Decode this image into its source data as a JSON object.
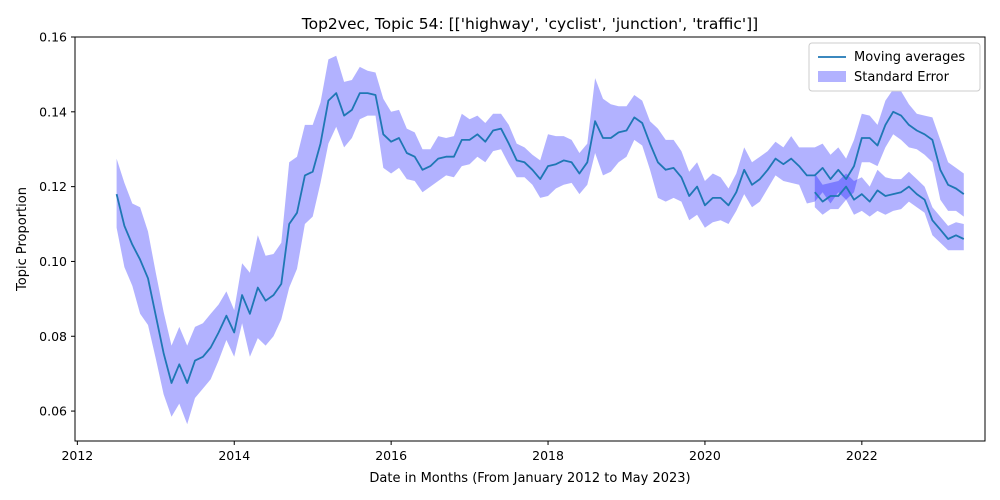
{
  "chart_data": {
    "type": "line",
    "title": "Top2vec, Topic 54: [['highway', 'cyclist', 'junction', 'traffic']]",
    "xlabel": "Date in Months (From January 2012 to May 2023)",
    "ylabel": "Topic Proportion",
    "xlim": [
      2011.97,
      2023.57
    ],
    "ylim": [
      0.052,
      0.16
    ],
    "x_ticks": [
      2012,
      2014,
      2016,
      2018,
      2020,
      2022
    ],
    "y_ticks": [
      0.06,
      0.08,
      0.1,
      0.12,
      0.14,
      0.16
    ],
    "y_tick_labels": [
      "0.06",
      "0.08",
      "0.10",
      "0.12",
      "0.14",
      "0.16"
    ],
    "grid": false,
    "legend_position": "top-right",
    "legend": [
      {
        "label": "Moving averages",
        "kind": "line",
        "color": "#1f77b4"
      },
      {
        "label": "Standard Error",
        "kind": "band",
        "color": "#0000ff"
      }
    ],
    "colors": {
      "line": "#1f77b4",
      "band": "#0000ff"
    },
    "series": [
      {
        "x": [
          2012.5,
          2012.6,
          2012.7,
          2012.8,
          2012.9,
          2013.0,
          2013.1,
          2013.2,
          2013.3,
          2013.4,
          2013.5,
          2013.6,
          2013.7,
          2013.8,
          2013.9,
          2014.0,
          2014.1,
          2014.2,
          2014.3,
          2014.4,
          2014.5,
          2014.6,
          2014.7,
          2014.8,
          2014.9,
          2015.0,
          2015.1,
          2015.2,
          2015.3,
          2015.4,
          2015.5,
          2015.6,
          2015.7,
          2015.8,
          2015.9,
          2016.0,
          2016.1,
          2016.2,
          2016.3,
          2016.4,
          2016.5,
          2016.6,
          2016.7,
          2016.8,
          2016.9,
          2017.0,
          2017.1,
          2017.2,
          2017.3,
          2017.4,
          2017.5,
          2017.6,
          2017.7,
          2017.8,
          2017.9,
          2018.0,
          2018.1,
          2018.2,
          2018.3,
          2018.4,
          2018.5,
          2018.6,
          2018.7,
          2018.8,
          2018.9,
          2019.0,
          2019.1,
          2019.2,
          2019.3,
          2019.4,
          2019.5,
          2019.6,
          2019.7,
          2019.8,
          2019.9,
          2020.0,
          2020.1,
          2020.2,
          2020.3,
          2020.4,
          2020.5,
          2020.6,
          2020.7,
          2020.8,
          2020.9,
          2021.0,
          2021.1,
          2021.2,
          2021.3,
          2021.4,
          2021.5,
          2021.6,
          2021.7,
          2021.8,
          2021.9,
          2022.0,
          2022.1,
          2022.2,
          2022.3,
          2022.4,
          2022.5,
          2022.6,
          2022.7,
          2022.8,
          2022.9,
          2023.0,
          2023.1,
          2023.2,
          2023.3
        ],
        "y": [
          0.118,
          0.1095,
          0.1045,
          0.1005,
          0.0955,
          0.0855,
          0.0755,
          0.0675,
          0.0725,
          0.0675,
          0.0735,
          0.0745,
          0.077,
          0.081,
          0.0855,
          0.081,
          0.091,
          0.086,
          0.093,
          0.0895,
          0.091,
          0.094,
          0.11,
          0.113,
          0.123,
          0.124,
          0.1315,
          0.143,
          0.145,
          0.139,
          0.1405,
          0.145,
          0.145,
          0.1445,
          0.134,
          0.132,
          0.133,
          0.129,
          0.128,
          0.1245,
          0.1255,
          0.1275,
          0.128,
          0.128,
          0.1325,
          0.1325,
          0.134,
          0.132,
          0.135,
          0.1355,
          0.1315,
          0.127,
          0.1265,
          0.1245,
          0.122,
          0.1255,
          0.126,
          0.127,
          0.1265,
          0.1235,
          0.1265,
          0.1375,
          0.133,
          0.133,
          0.1345,
          0.135,
          0.1385,
          0.137,
          0.1315,
          0.1265,
          0.1245,
          0.125,
          0.1225,
          0.1175,
          0.12,
          0.115,
          0.117,
          0.117,
          0.115,
          0.1185,
          0.1245,
          0.1205,
          0.122,
          0.1245,
          0.1275,
          0.126,
          0.1275,
          0.1255,
          0.123,
          0.123,
          0.125,
          0.122,
          0.1245,
          0.122,
          0.1255,
          0.133,
          0.133,
          0.131,
          0.1365,
          0.14,
          0.139,
          0.1365,
          0.135,
          0.134,
          0.1325,
          0.1245,
          0.1205,
          0.1195,
          0.118
        ],
        "lower": [
          0.109,
          0.0985,
          0.0935,
          0.086,
          0.083,
          0.074,
          0.0645,
          0.0585,
          0.062,
          0.0565,
          0.0635,
          0.066,
          0.0685,
          0.0735,
          0.079,
          0.0745,
          0.0835,
          0.0745,
          0.0795,
          0.0775,
          0.08,
          0.0845,
          0.093,
          0.098,
          0.11,
          0.112,
          0.121,
          0.1315,
          0.136,
          0.1305,
          0.133,
          0.138,
          0.139,
          0.139,
          0.125,
          0.1235,
          0.125,
          0.122,
          0.1215,
          0.1185,
          0.12,
          0.1215,
          0.123,
          0.1225,
          0.1255,
          0.126,
          0.128,
          0.1265,
          0.1295,
          0.13,
          0.126,
          0.1225,
          0.1225,
          0.1205,
          0.117,
          0.1175,
          0.1195,
          0.1205,
          0.121,
          0.118,
          0.1205,
          0.129,
          0.123,
          0.124,
          0.1265,
          0.128,
          0.1325,
          0.131,
          0.1245,
          0.117,
          0.116,
          0.117,
          0.116,
          0.111,
          0.1125,
          0.109,
          0.1105,
          0.111,
          0.11,
          0.1135,
          0.118,
          0.1145,
          0.116,
          0.1195,
          0.123,
          0.1215,
          0.121,
          0.1205,
          0.1155,
          0.116,
          0.1185,
          0.1155,
          0.1185,
          0.1165,
          0.1185,
          0.1265,
          0.1265,
          0.1255,
          0.1305,
          0.134,
          0.1325,
          0.1305,
          0.13,
          0.1285,
          0.1265,
          0.1165,
          0.1135,
          0.1135,
          0.112
        ],
        "upper": [
          0.1275,
          0.121,
          0.1155,
          0.1145,
          0.108,
          0.097,
          0.0865,
          0.0775,
          0.0825,
          0.0775,
          0.0825,
          0.0835,
          0.086,
          0.0885,
          0.092,
          0.087,
          0.0995,
          0.097,
          0.107,
          0.1015,
          0.102,
          0.105,
          0.1265,
          0.128,
          0.1365,
          0.1365,
          0.1425,
          0.154,
          0.155,
          0.148,
          0.1485,
          0.152,
          0.151,
          0.1505,
          0.1435,
          0.14,
          0.1405,
          0.1355,
          0.1345,
          0.13,
          0.13,
          0.1335,
          0.133,
          0.1335,
          0.1395,
          0.138,
          0.139,
          0.137,
          0.1395,
          0.1395,
          0.1365,
          0.1315,
          0.1305,
          0.1285,
          0.127,
          0.134,
          0.1335,
          0.1335,
          0.1325,
          0.129,
          0.1315,
          0.149,
          0.1435,
          0.142,
          0.1415,
          0.1415,
          0.1445,
          0.143,
          0.1375,
          0.1355,
          0.1325,
          0.1325,
          0.1295,
          0.124,
          0.1265,
          0.1215,
          0.1235,
          0.1225,
          0.1195,
          0.1235,
          0.1305,
          0.1265,
          0.128,
          0.1295,
          0.132,
          0.1305,
          0.1335,
          0.1305,
          0.1305,
          0.1305,
          0.1315,
          0.1285,
          0.1305,
          0.1275,
          0.1325,
          0.1395,
          0.139,
          0.1365,
          0.143,
          0.146,
          0.1455,
          0.142,
          0.1395,
          0.139,
          0.1385,
          0.1325,
          0.1265,
          0.125,
          0.1235
        ]
      },
      {
        "x": [
          2021.4,
          2021.5,
          2021.6,
          2021.7,
          2021.8,
          2021.9,
          2022.0,
          2022.1,
          2022.2,
          2022.3,
          2022.4,
          2022.5,
          2022.6,
          2022.7,
          2022.8,
          2022.9,
          2023.0,
          2023.1,
          2023.2,
          2023.3
        ],
        "y": [
          0.1185,
          0.116,
          0.1175,
          0.1175,
          0.12,
          0.1165,
          0.118,
          0.116,
          0.119,
          0.1175,
          0.118,
          0.1185,
          0.12,
          0.118,
          0.1165,
          0.111,
          0.1085,
          0.106,
          0.107,
          0.106
        ],
        "lower": [
          0.1145,
          0.1125,
          0.114,
          0.114,
          0.1165,
          0.1125,
          0.1135,
          0.112,
          0.1135,
          0.1125,
          0.1135,
          0.114,
          0.116,
          0.1145,
          0.113,
          0.107,
          0.105,
          0.103,
          0.103,
          0.103
        ],
        "upper": [
          0.1235,
          0.1205,
          0.121,
          0.1215,
          0.1235,
          0.1215,
          0.1225,
          0.12,
          0.1245,
          0.1225,
          0.122,
          0.122,
          0.124,
          0.122,
          0.12,
          0.1145,
          0.112,
          0.1095,
          0.1105,
          0.11
        ]
      }
    ]
  }
}
